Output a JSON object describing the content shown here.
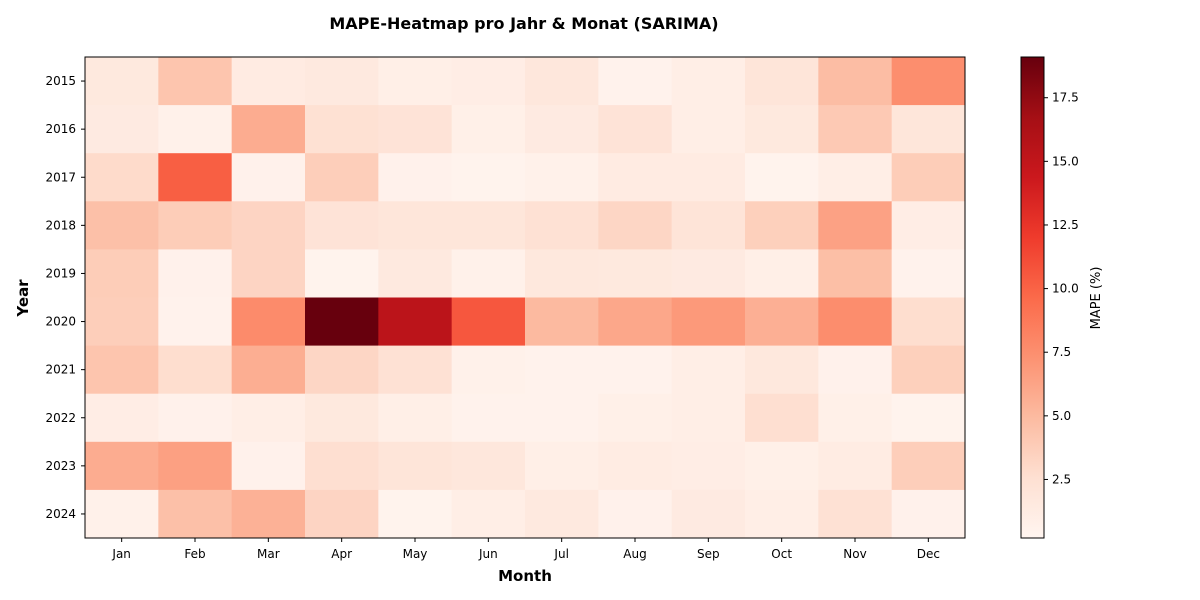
{
  "chart_data": {
    "type": "heatmap",
    "title": "MAPE-Heatmap pro Jahr & Monat (SARIMA)",
    "xlabel": "Month",
    "ylabel": "Year",
    "x_categories": [
      "Jan",
      "Feb",
      "Mar",
      "Apr",
      "May",
      "Jun",
      "Jul",
      "Aug",
      "Sep",
      "Oct",
      "Nov",
      "Dec"
    ],
    "y_categories": [
      "2015",
      "2016",
      "2017",
      "2018",
      "2019",
      "2020",
      "2021",
      "2022",
      "2023",
      "2024"
    ],
    "values": [
      [
        1.6,
        4.3,
        1.3,
        1.5,
        0.9,
        1.1,
        1.8,
        0.5,
        1.0,
        2.0,
        4.8,
        7.5
      ],
      [
        1.4,
        0.7,
        5.8,
        2.5,
        2.2,
        0.8,
        1.4,
        2.2,
        1.0,
        1.6,
        4.0,
        1.9
      ],
      [
        2.9,
        10.2,
        0.6,
        3.7,
        0.6,
        0.4,
        0.7,
        1.3,
        1.3,
        0.4,
        1.0,
        3.8
      ],
      [
        4.6,
        3.8,
        3.3,
        2.2,
        1.9,
        1.9,
        2.4,
        3.2,
        2.1,
        3.6,
        6.4,
        1.1
      ],
      [
        3.8,
        0.6,
        3.3,
        0.4,
        1.5,
        0.7,
        1.7,
        1.6,
        1.4,
        0.9,
        4.7,
        0.5
      ],
      [
        3.7,
        0.5,
        7.7,
        19.1,
        15.4,
        10.6,
        5.0,
        6.1,
        6.9,
        5.6,
        7.6,
        2.7
      ],
      [
        4.3,
        2.7,
        5.7,
        3.2,
        2.4,
        0.7,
        0.5,
        0.5,
        1.0,
        1.7,
        0.6,
        3.6
      ],
      [
        1.1,
        0.6,
        1.0,
        1.6,
        0.9,
        0.5,
        0.5,
        0.8,
        1.0,
        2.6,
        0.8,
        0.4
      ],
      [
        5.8,
        6.5,
        0.6,
        2.6,
        2.0,
        1.8,
        0.9,
        1.2,
        1.1,
        0.8,
        1.2,
        3.7
      ],
      [
        0.7,
        4.6,
        5.5,
        3.3,
        0.4,
        1.0,
        1.5,
        0.6,
        1.4,
        1.0,
        2.4,
        0.6
      ]
    ],
    "vmin": 0.2,
    "vmax": 19.1,
    "colormap": "Reds",
    "colorbar": {
      "label": "MAPE (%)",
      "ticks": [
        2.5,
        5.0,
        7.5,
        10.0,
        12.5,
        15.0,
        17.5
      ],
      "tick_labels": [
        "2.5",
        "5.0",
        "7.5",
        "10.0",
        "12.5",
        "15.0",
        "17.5"
      ],
      "placement": "right"
    },
    "grid": false,
    "colors": [
      "#fff5f0",
      "#fee0d2",
      "#fcbba1",
      "#fc9272",
      "#fb6a4a",
      "#ef3b2c",
      "#cb181d",
      "#a50f15",
      "#67000d"
    ]
  }
}
